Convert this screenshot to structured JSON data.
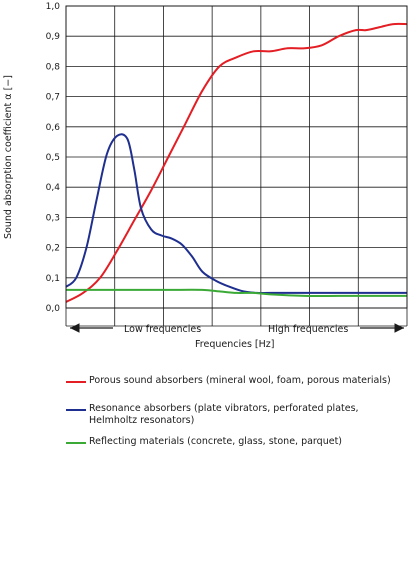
{
  "chart_data": {
    "type": "line",
    "ylabel": "Sound absorption coefficient  α [−]",
    "xlabel": "Frequencies  [Hz]",
    "ylim": [
      0,
      1
    ],
    "yticks": [
      "0,0",
      "0,1",
      "0,2",
      "0,3",
      "0,4",
      "0,5",
      "0,6",
      "0,7",
      "0,8",
      "0,9",
      "1,0"
    ],
    "x_annotations": {
      "low": "Low frequencies",
      "high": "High frequencies"
    },
    "grid": true,
    "series": [
      {
        "name": "Porous sound absorbers (mineral wool, foam, porous materials)",
        "color": "#e31e24",
        "x": [
          0,
          0.05,
          0.1,
          0.15,
          0.2,
          0.25,
          0.3,
          0.35,
          0.4,
          0.45,
          0.5,
          0.55,
          0.6,
          0.65,
          0.7,
          0.75,
          0.8,
          0.85,
          0.88,
          0.92,
          0.96,
          1.0
        ],
        "values": [
          0.02,
          0.05,
          0.1,
          0.19,
          0.29,
          0.39,
          0.5,
          0.61,
          0.72,
          0.8,
          0.83,
          0.85,
          0.85,
          0.86,
          0.86,
          0.87,
          0.9,
          0.92,
          0.92,
          0.93,
          0.94,
          0.94
        ]
      },
      {
        "name": "Resonance absorbers (plate vibrators, perforated plates, Helmholtz resonators)",
        "color": "#1f2f8f",
        "x": [
          0,
          0.03,
          0.06,
          0.09,
          0.12,
          0.15,
          0.18,
          0.2,
          0.22,
          0.25,
          0.28,
          0.31,
          0.34,
          0.37,
          0.4,
          0.44,
          0.48,
          0.52,
          0.56,
          0.6,
          0.7,
          0.8,
          0.9,
          1.0
        ],
        "values": [
          0.07,
          0.1,
          0.2,
          0.36,
          0.51,
          0.57,
          0.56,
          0.46,
          0.33,
          0.26,
          0.24,
          0.23,
          0.21,
          0.17,
          0.12,
          0.09,
          0.07,
          0.055,
          0.05,
          0.05,
          0.05,
          0.05,
          0.05,
          0.05
        ]
      },
      {
        "name": "Reflecting materials (concrete, glass, stone, parquet)",
        "color": "#3aa935",
        "x": [
          0,
          0.1,
          0.2,
          0.3,
          0.4,
          0.45,
          0.5,
          0.55,
          0.6,
          0.7,
          0.8,
          0.9,
          1.0
        ],
        "values": [
          0.06,
          0.06,
          0.06,
          0.06,
          0.06,
          0.055,
          0.05,
          0.05,
          0.045,
          0.04,
          0.04,
          0.04,
          0.04
        ]
      }
    ],
    "legend": [
      {
        "text": "Porous sound absorbers (mineral wool, foam, porous materials)",
        "color": "#e31e24"
      },
      {
        "text": "Resonance absorbers (plate vibrators, perforated plates, Helmholtz resonators)",
        "color": "#1f2f8f"
      },
      {
        "text": "Reflecting materials (concrete, glass, stone, parquet)",
        "color": "#3aa935"
      }
    ]
  }
}
